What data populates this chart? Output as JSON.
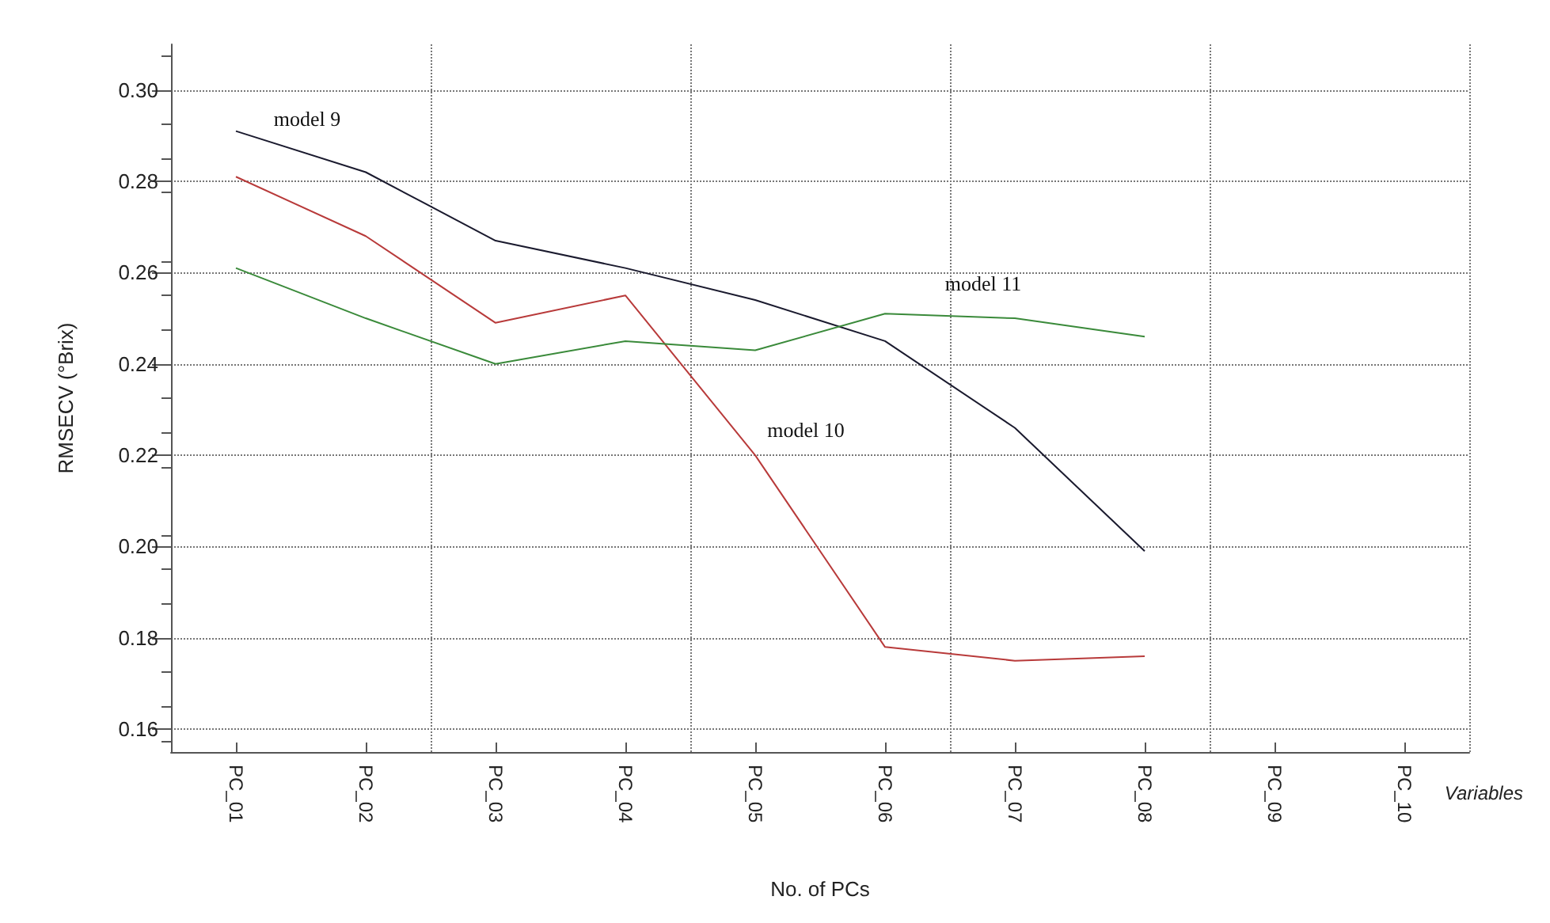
{
  "chart_data": {
    "type": "line",
    "xlabel": "No. of PCs",
    "ylabel": "RMSECV (°Brix)",
    "categories": [
      "PC_01",
      "PC_02",
      "PC_03",
      "PC_04",
      "PC_05",
      "PC_06",
      "PC_07",
      "PC_08",
      "PC_09",
      "PC_10"
    ],
    "series": [
      {
        "name": "model 9",
        "color": "#1a1a2e",
        "values": [
          0.291,
          0.282,
          0.267,
          0.261,
          0.254,
          0.245,
          0.226,
          0.199,
          null,
          null
        ]
      },
      {
        "name": "model 10",
        "color": "#b83a3a",
        "values": [
          0.281,
          0.268,
          0.249,
          0.255,
          0.22,
          0.178,
          0.175,
          0.176,
          null,
          null
        ]
      },
      {
        "name": "model 11",
        "color": "#3a8a3a",
        "values": [
          0.261,
          0.25,
          0.24,
          0.245,
          0.243,
          0.251,
          0.25,
          0.246,
          null,
          null
        ]
      }
    ],
    "ylim": [
      0.155,
      0.31
    ],
    "yticks": [
      0.16,
      0.18,
      {
        "value": 0.2,
        "label": "0.20"
      },
      0.22,
      0.24,
      0.26,
      0.28,
      {
        "value": 0.3,
        "label": "0.30"
      }
    ],
    "annotations": [
      "Variables"
    ],
    "grid": true,
    "legend": false,
    "marker": "none",
    "line_style": "solid"
  }
}
